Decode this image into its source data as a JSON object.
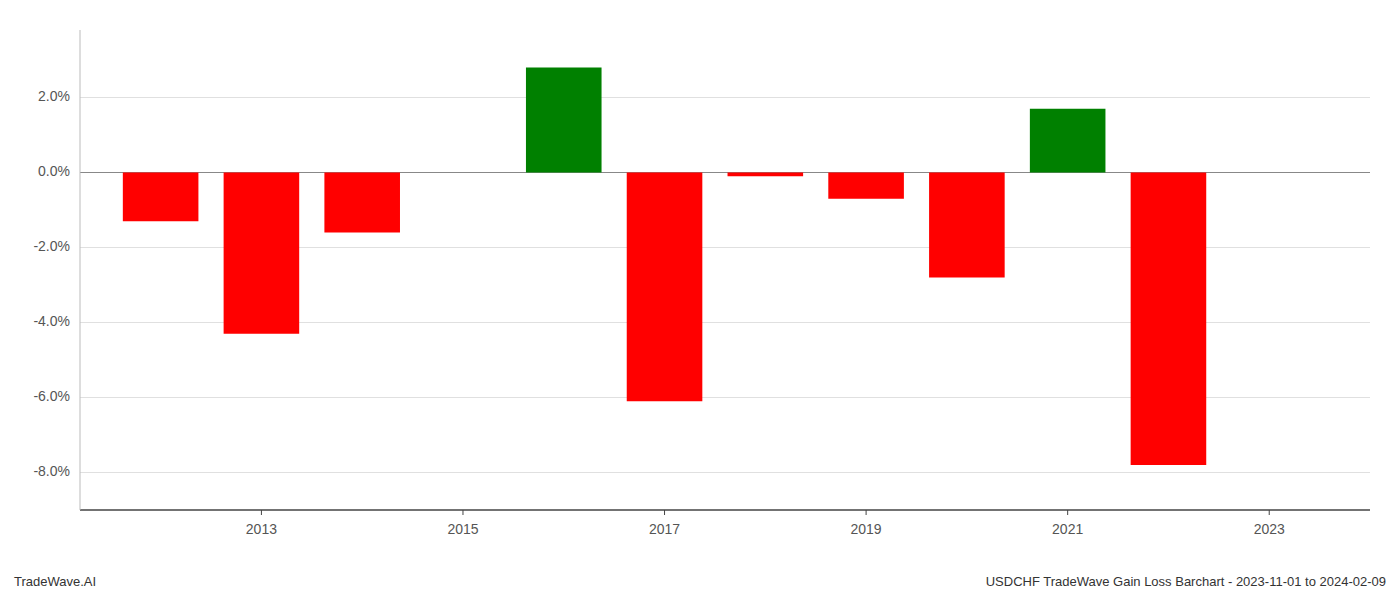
{
  "chart_data": {
    "type": "bar",
    "x": [
      2012,
      2013,
      2014,
      2016,
      2017,
      2018,
      2019,
      2020,
      2021,
      2022
    ],
    "values": [
      -0.013,
      -0.043,
      -0.016,
      0.028,
      -0.061,
      -0.001,
      -0.007,
      -0.028,
      0.017,
      -0.078
    ],
    "colors": [
      "#ff0000",
      "#ff0000",
      "#ff0000",
      "#008000",
      "#ff0000",
      "#ff0000",
      "#ff0000",
      "#ff0000",
      "#008000",
      "#ff0000"
    ],
    "xlim": [
      2011.2,
      2024.0
    ],
    "xticks": [
      2013,
      2015,
      2017,
      2019,
      2021,
      2023
    ],
    "ylim": [
      -0.09,
      0.038
    ],
    "yticks": [
      {
        "value": -0.08,
        "label": "-8.0%"
      },
      {
        "value": -0.06,
        "label": "-6.0%"
      },
      {
        "value": -0.04,
        "label": "-4.0%"
      },
      {
        "value": -0.02,
        "label": "-2.0%"
      },
      {
        "value": 0.0,
        "label": "0.0%"
      },
      {
        "value": 0.02,
        "label": "2.0%"
      }
    ],
    "grid": true,
    "annotations": [
      "TradeWave.AI",
      "USDCHF TradeWave Gain Loss Barchart - 2023-11-01 to 2024-02-09"
    ]
  }
}
